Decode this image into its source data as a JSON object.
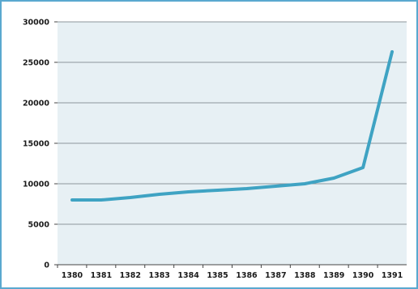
{
  "chart_data": {
    "type": "line",
    "title": "",
    "xlabel": "",
    "ylabel": "",
    "categories": [
      "1380",
      "1381",
      "1382",
      "1383",
      "1384",
      "1385",
      "1386",
      "1387",
      "1388",
      "1389",
      "1390",
      "1391"
    ],
    "series": [
      {
        "values": [
          8000,
          8000,
          8300,
          8700,
          9000,
          9200,
          9400,
          9700,
          10000,
          10700,
          12000,
          26300
        ]
      }
    ],
    "ylim": [
      0,
      30000
    ],
    "yticks": [
      "0",
      "5000",
      "10000",
      "15000",
      "20000",
      "25000",
      "30000"
    ],
    "grid": true,
    "legend": "none",
    "colors": {
      "line": "#3fa3c3",
      "plot_background": "#e7f0f4",
      "gridline": "#8d969b",
      "frame": "#5aa8cf"
    }
  }
}
